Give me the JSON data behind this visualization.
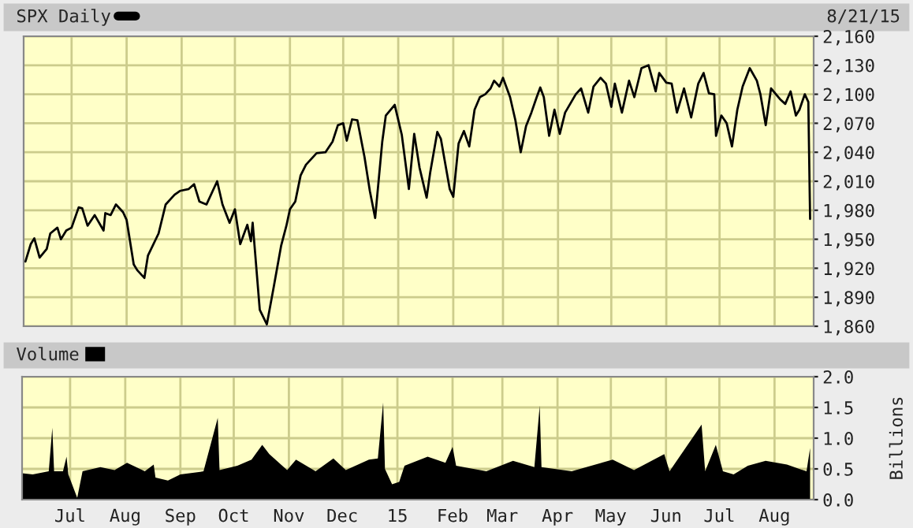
{
  "chart_data": [
    {
      "type": "line",
      "annotations": [
        "8/21/15"
      ],
      "legend": "top left",
      "grid": true,
      "tick_labels": "y",
      "xlim": [
        "2014-06-04",
        "2015-08-23"
      ],
      "xticks": [
        {
          "value": "2014-07-01",
          "label": null
        },
        {
          "value": "2014-08-01",
          "label": null
        },
        {
          "value": "2014-09-01",
          "label": null
        },
        {
          "value": "2014-10-01",
          "label": null
        },
        {
          "value": "2014-11-01",
          "label": null
        },
        {
          "value": "2014-12-01",
          "label": null
        },
        {
          "value": "2015-01-01",
          "label": null
        },
        {
          "value": "2015-02-01",
          "label": null
        },
        {
          "value": "2015-03-01",
          "label": null
        },
        {
          "value": "2015-04-01",
          "label": null
        },
        {
          "value": "2015-05-01",
          "label": null
        },
        {
          "value": "2015-06-01",
          "label": null
        },
        {
          "value": "2015-07-01",
          "label": null
        },
        {
          "value": "2015-08-01",
          "label": null
        }
      ],
      "ylim": [
        1860,
        2160
      ],
      "yticks": [
        {
          "value": 1860,
          "label": "1,860"
        },
        {
          "value": 1890,
          "label": "1,890"
        },
        {
          "value": 1920,
          "label": "1,920"
        },
        {
          "value": 1950,
          "label": "1,950"
        },
        {
          "value": 1980,
          "label": "1,980"
        },
        {
          "value": 2010,
          "label": "2,010"
        },
        {
          "value": 2040,
          "label": "2,040"
        },
        {
          "value": 2070,
          "label": "2,070"
        },
        {
          "value": 2100,
          "label": "2,100"
        },
        {
          "value": 2130,
          "label": "2,130"
        },
        {
          "value": 2160,
          "label": "2,160"
        }
      ],
      "series": [
        {
          "name": "SPX Daily",
          "color": "#000000",
          "x": [
            "2014-06-05",
            "2014-06-08",
            "2014-06-10",
            "2014-06-13",
            "2014-06-17",
            "2014-06-19",
            "2014-06-23",
            "2014-06-25",
            "2014-06-28",
            "2014-07-01",
            "2014-07-05",
            "2014-07-07",
            "2014-07-10",
            "2014-07-14",
            "2014-07-19",
            "2014-07-20",
            "2014-07-23",
            "2014-07-26",
            "2014-07-30",
            "2014-08-01",
            "2014-08-05",
            "2014-08-07",
            "2014-08-11",
            "2014-08-13",
            "2014-08-19",
            "2014-08-23",
            "2014-08-28",
            "2014-08-31",
            "2014-09-05",
            "2014-09-08",
            "2014-09-11",
            "2014-09-15",
            "2014-09-21",
            "2014-09-24",
            "2014-09-28",
            "2014-10-01",
            "2014-10-04",
            "2014-10-08",
            "2014-10-10",
            "2014-10-11",
            "2014-10-15",
            "2014-10-19",
            "2014-10-23",
            "2014-10-27",
            "2014-10-30",
            "2014-11-01",
            "2014-11-04",
            "2014-11-07",
            "2014-11-10",
            "2014-11-16",
            "2014-11-21",
            "2014-11-25",
            "2014-11-28",
            "2014-12-01",
            "2014-12-03",
            "2014-12-06",
            "2014-12-09",
            "2014-12-13",
            "2014-12-16",
            "2014-12-19",
            "2014-12-23",
            "2014-12-25",
            "2014-12-30",
            "2015-01-03",
            "2015-01-07",
            "2015-01-10",
            "2015-01-13",
            "2015-01-17",
            "2015-01-19",
            "2015-01-23",
            "2015-01-25",
            "2015-01-30",
            "2015-02-01",
            "2015-02-04",
            "2015-02-07",
            "2015-02-10",
            "2015-02-13",
            "2015-02-16",
            "2015-02-19",
            "2015-02-22",
            "2015-02-24",
            "2015-02-27",
            "2015-03-01",
            "2015-03-05",
            "2015-03-08",
            "2015-03-11",
            "2015-03-14",
            "2015-03-17",
            "2015-03-20",
            "2015-03-22",
            "2015-03-24",
            "2015-03-27",
            "2015-03-30",
            "2015-04-02",
            "2015-04-05",
            "2015-04-11",
            "2015-04-14",
            "2015-04-18",
            "2015-04-21",
            "2015-04-25",
            "2015-04-28",
            "2015-05-01",
            "2015-05-03",
            "2015-05-07",
            "2015-05-11",
            "2015-05-14",
            "2015-05-18",
            "2015-05-22",
            "2015-05-26",
            "2015-05-28",
            "2015-06-01",
            "2015-06-04",
            "2015-06-07",
            "2015-06-11",
            "2015-06-15",
            "2015-06-19",
            "2015-06-22",
            "2015-06-25",
            "2015-06-28",
            "2015-06-29",
            "2015-07-02",
            "2015-07-05",
            "2015-07-08",
            "2015-07-11",
            "2015-07-14",
            "2015-07-18",
            "2015-07-22",
            "2015-07-24",
            "2015-07-27",
            "2015-07-30",
            "2015-08-04",
            "2015-08-07",
            "2015-08-10",
            "2015-08-13",
            "2015-08-15",
            "2015-08-18",
            "2015-08-20",
            "2015-08-21"
          ],
          "values": [
            1927,
            1945,
            1951,
            1931,
            1940,
            1956,
            1962,
            1950,
            1959,
            1962,
            1983,
            1982,
            1964,
            1975,
            1959,
            1977,
            1975,
            1986,
            1978,
            1970,
            1924,
            1918,
            1910,
            1933,
            1956,
            1986,
            1996,
            2000,
            2002,
            2007,
            1989,
            1986,
            2010,
            1986,
            1967,
            1981,
            1945,
            1965,
            1948,
            1967,
            1877,
            1862,
            1902,
            1943,
            1964,
            1981,
            1989,
            2016,
            2027,
            2039,
            2040,
            2051,
            2068,
            2070,
            2052,
            2074,
            2073,
            2035,
            2000,
            1972,
            2051,
            2078,
            2089,
            2058,
            2002,
            2059,
            2024,
            1993,
            2019,
            2061,
            2054,
            2002,
            1994,
            2049,
            2062,
            2046,
            2084,
            2097,
            2100,
            2106,
            2114,
            2108,
            2117,
            2097,
            2073,
            2040,
            2067,
            2081,
            2097,
            2107,
            2097,
            2057,
            2084,
            2059,
            2081,
            2100,
            2106,
            2081,
            2108,
            2117,
            2111,
            2087,
            2111,
            2081,
            2114,
            2097,
            2127,
            2130,
            2103,
            2122,
            2112,
            2111,
            2081,
            2106,
            2076,
            2111,
            2122,
            2101,
            2100,
            2057,
            2078,
            2070,
            2046,
            2084,
            2108,
            2127,
            2114,
            2100,
            2068,
            2106,
            2095,
            2090,
            2103,
            2078,
            2084,
            2100,
            2092,
            1971
          ]
        }
      ]
    },
    {
      "type": "area",
      "ylabel": "Billions",
      "legend": "top left",
      "grid": true,
      "xlim": [
        "2014-06-04",
        "2015-08-23"
      ],
      "xticks": [
        {
          "value": "2014-07-01",
          "label": "Jul"
        },
        {
          "value": "2014-08-01",
          "label": "Aug"
        },
        {
          "value": "2014-09-01",
          "label": "Sep"
        },
        {
          "value": "2014-10-01",
          "label": "Oct"
        },
        {
          "value": "2014-11-01",
          "label": "Nov"
        },
        {
          "value": "2014-12-01",
          "label": "Dec"
        },
        {
          "value": "2015-01-01",
          "label": "15"
        },
        {
          "value": "2015-02-01",
          "label": "Feb"
        },
        {
          "value": "2015-03-01",
          "label": "Mar"
        },
        {
          "value": "2015-04-01",
          "label": "Apr"
        },
        {
          "value": "2015-05-01",
          "label": "May"
        },
        {
          "value": "2015-06-01",
          "label": "Jun"
        },
        {
          "value": "2015-07-01",
          "label": "Jul"
        },
        {
          "value": "2015-08-01",
          "label": "Aug"
        }
      ],
      "ylim": [
        0,
        2.0
      ],
      "yticks": [
        {
          "value": 0,
          "label": "0.0"
        },
        {
          "value": 0.5,
          "label": "0.5"
        },
        {
          "value": 1.0,
          "label": "1.0"
        },
        {
          "value": 1.5,
          "label": "1.5"
        },
        {
          "value": 2.0,
          "label": "2.0"
        }
      ],
      "series": [
        {
          "name": "Volume",
          "color": "#000000",
          "x": [
            "2014-06-04",
            "2014-06-10",
            "2014-06-19",
            "2014-06-21",
            "2014-06-22",
            "2014-06-27",
            "2014-06-29",
            "2014-06-30",
            "2014-07-05",
            "2014-07-08",
            "2014-07-18",
            "2014-07-26",
            "2014-08-02",
            "2014-08-12",
            "2014-08-17",
            "2014-08-18",
            "2014-08-25",
            "2014-09-01",
            "2014-09-14",
            "2014-09-22",
            "2014-09-23",
            "2014-10-03",
            "2014-10-11",
            "2014-10-17",
            "2014-10-21",
            "2014-10-31",
            "2014-11-05",
            "2014-11-16",
            "2014-11-26",
            "2014-12-03",
            "2014-12-16",
            "2014-12-21",
            "2014-12-24",
            "2014-12-25",
            "2014-12-29",
            "2015-01-02",
            "2015-01-05",
            "2015-01-18",
            "2015-01-28",
            "2015-02-01",
            "2015-02-03",
            "2015-02-20",
            "2015-03-07",
            "2015-03-19",
            "2015-03-22",
            "2015-03-23",
            "2015-04-09",
            "2015-05-02",
            "2015-05-14",
            "2015-05-31",
            "2015-06-03",
            "2015-06-21",
            "2015-06-23",
            "2015-06-29",
            "2015-07-03",
            "2015-07-09",
            "2015-07-17",
            "2015-07-27",
            "2015-08-08",
            "2015-08-19",
            "2015-08-21"
          ],
          "values": [
            0.43,
            0.41,
            0.46,
            1.17,
            0.46,
            0.46,
            0.7,
            0.41,
            0.03,
            0.46,
            0.53,
            0.48,
            0.6,
            0.46,
            0.57,
            0.36,
            0.31,
            0.41,
            0.46,
            1.33,
            0.48,
            0.55,
            0.65,
            0.89,
            0.74,
            0.48,
            0.65,
            0.46,
            0.67,
            0.48,
            0.65,
            0.67,
            1.58,
            0.5,
            0.25,
            0.29,
            0.55,
            0.7,
            0.6,
            0.86,
            0.55,
            0.46,
            0.63,
            0.53,
            1.53,
            0.53,
            0.46,
            0.65,
            0.48,
            0.74,
            0.46,
            1.22,
            0.46,
            0.89,
            0.46,
            0.41,
            0.55,
            0.63,
            0.57,
            0.46,
            0.84
          ]
        }
      ]
    }
  ]
}
